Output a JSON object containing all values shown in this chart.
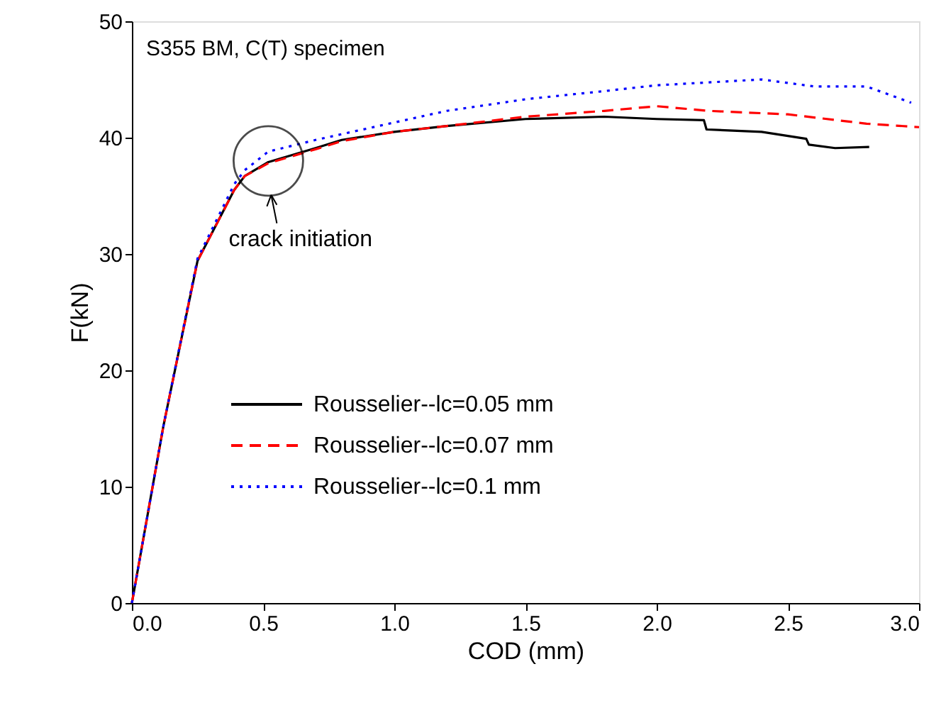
{
  "chart_data": {
    "type": "line",
    "xlabel": "COD (mm)",
    "ylabel": "F(kN)",
    "xlim": [
      0,
      3
    ],
    "ylim": [
      0,
      50
    ],
    "xticks": [
      {
        "value": 0,
        "label": "0.0"
      },
      {
        "value": 0.5,
        "label": "0.5"
      },
      {
        "value": 1,
        "label": "1.0"
      },
      {
        "value": 1.5,
        "label": "1.5"
      },
      {
        "value": 2,
        "label": "2.0"
      },
      {
        "value": 2.5,
        "label": "2.5"
      },
      {
        "value": 3,
        "label": "3.0"
      }
    ],
    "yticks": [
      0,
      10,
      20,
      30,
      40,
      50
    ],
    "grid": false,
    "legend": "bottom",
    "marker": "none",
    "annotations": [
      "S355 BM, C(T) specimen",
      {
        "text": "crack initiation",
        "x": 0.52,
        "y": 38
      }
    ],
    "series": [
      {
        "name": "Rousselier--lc=0.05 mm",
        "color": "#000000",
        "line_style": "solid",
        "x": [
          0,
          0.12,
          0.25,
          0.39,
          0.43,
          0.52,
          0.7,
          0.8,
          1.0,
          1.2,
          1.5,
          1.8,
          2.0,
          2.18,
          2.19,
          2.4,
          2.57,
          2.58,
          2.68,
          2.81
        ],
        "values": [
          0,
          15.2,
          29.4,
          35.5,
          36.7,
          37.9,
          39.1,
          39.8,
          40.5,
          41.0,
          41.6,
          41.8,
          41.6,
          41.5,
          40.7,
          40.5,
          39.9,
          39.4,
          39.1,
          39.2
        ]
      },
      {
        "name": "Rousselier--lc=0.07 mm",
        "color": "#ff0000",
        "line_style": "dashed",
        "x": [
          0,
          0.12,
          0.25,
          0.39,
          0.43,
          0.52,
          0.7,
          0.8,
          1.0,
          1.2,
          1.5,
          1.8,
          2.0,
          2.2,
          2.5,
          2.8,
          3.0
        ],
        "values": [
          0,
          15.2,
          29.4,
          35.5,
          36.7,
          37.8,
          39.0,
          39.7,
          40.5,
          41.0,
          41.8,
          42.3,
          42.7,
          42.3,
          42.0,
          41.2,
          40.9
        ]
      },
      {
        "name": "Rousselier--lc=0.1 mm",
        "color": "#0000ff",
        "line_style": "dotted",
        "x": [
          0,
          0.12,
          0.25,
          0.39,
          0.43,
          0.52,
          0.7,
          1.0,
          1.2,
          1.5,
          1.8,
          2.0,
          2.4,
          2.6,
          2.8,
          2.97
        ],
        "values": [
          0,
          15.2,
          29.6,
          36.0,
          37.2,
          38.8,
          39.8,
          41.3,
          42.3,
          43.3,
          44.0,
          44.5,
          45.0,
          44.4,
          44.4,
          43.0
        ]
      }
    ]
  }
}
